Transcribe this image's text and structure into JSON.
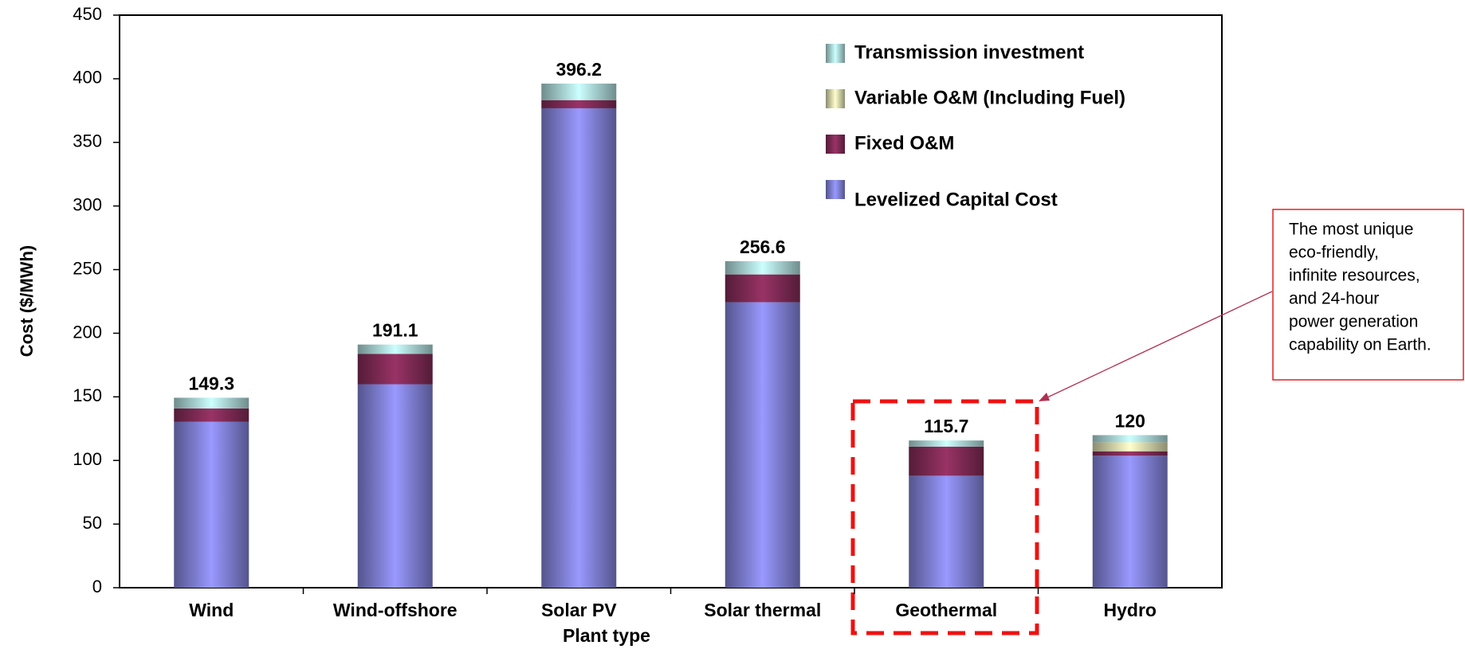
{
  "chart_data": {
    "type": "stacked_bar",
    "ylabel": "Cost ($/MWh)",
    "xlabel": "Plant type",
    "categories": [
      "Wind",
      "Wind-offshore",
      "Solar PV",
      "Solar thermal",
      "Geothermal",
      "Hydro"
    ],
    "series": [
      {
        "name": "Levelized Capital Cost",
        "color": "#9999ff",
        "values": [
          130.5,
          159.9,
          376.8,
          224.4,
          88.0,
          103.7
        ]
      },
      {
        "name": "Fixed O&M",
        "color": "#993366",
        "values": [
          10.4,
          23.8,
          6.4,
          21.8,
          22.9,
          3.5
        ]
      },
      {
        "name": "Variable O&M (Including Fuel)",
        "color": "#ffffcc",
        "values": [
          0,
          0,
          0,
          0,
          0,
          7.1
        ]
      },
      {
        "name": "Transmission investment",
        "color": "#ccffff",
        "values": [
          8.4,
          7.4,
          13.0,
          10.4,
          4.8,
          5.6
        ]
      }
    ],
    "totals": [
      149.3,
      191.1,
      396.2,
      256.6,
      115.7,
      120
    ],
    "ylim": [
      0,
      450
    ],
    "yticks": [
      0,
      50,
      100,
      150,
      200,
      250,
      300,
      350,
      400,
      450
    ],
    "annotation": {
      "lines": [
        "The most unique",
        "eco-friendly,",
        "infinite resources,",
        "and 24-hour",
        "power generation",
        "capability on Earth."
      ]
    }
  }
}
